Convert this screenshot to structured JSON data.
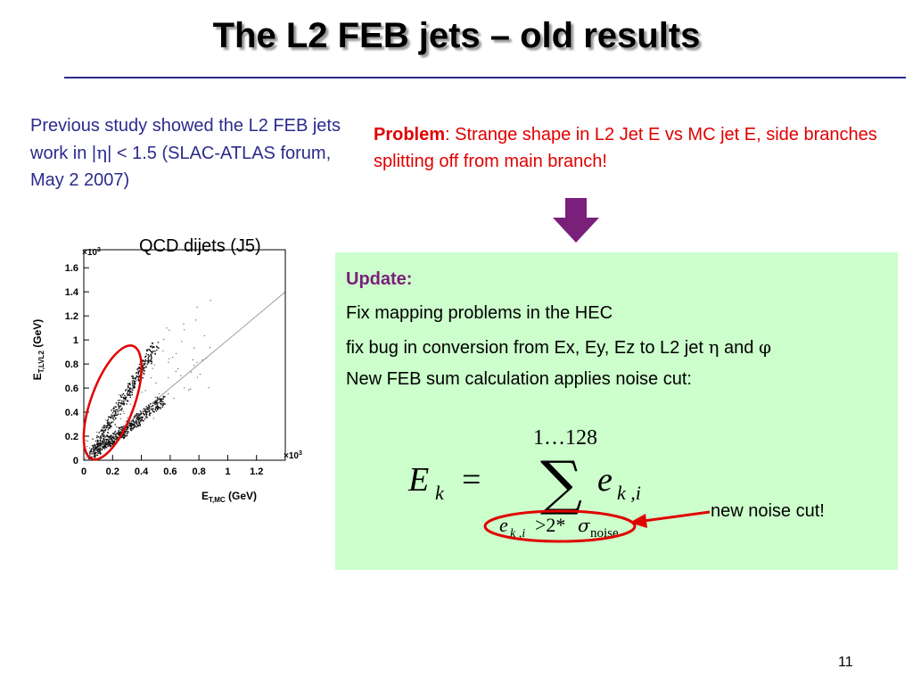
{
  "slide": {
    "title": "The L2 FEB jets – old results",
    "page_number": "11"
  },
  "left": {
    "text_before_eta": "Previous study showed the L2 FEB jets work in |",
    "eta": "η",
    "text_after_eta": "| < 1.5 (SLAC-ATLAS forum, May 2 2007)"
  },
  "problem": {
    "label": "Problem",
    "text": ": Strange shape in L2 Jet E vs MC jet E, side branches splitting off from main branch!"
  },
  "update": {
    "title": "Update:",
    "line1": "Fix mapping problems in the HEC",
    "line2_prefix": "fix bug in conversion from Ex, Ey, Ez to L2 jet ",
    "line2_eta": "η",
    "line2_and": " and ",
    "line2_phi": "φ",
    "line3": "New FEB sum calculation applies noise cut:",
    "noise_label": "new noise cut!"
  },
  "formula": {
    "lhs_E": "E",
    "lhs_sub": "k",
    "equals": "=",
    "sigma": "∑",
    "upper": "1…128",
    "rhs_e": "e",
    "rhs_sub": "k ,i",
    "lower_e": "e",
    "lower_sub": "k ,i",
    "lower_cond": ">2*",
    "lower_sigma": "σ",
    "lower_noise": "noise"
  },
  "colors": {
    "title_rule": "#2b2b8c",
    "left_text": "#2b2b8c",
    "problem_text": "#e00000",
    "arrow": "#7a1f7a",
    "update_bg": "#ccffcc",
    "update_title": "#7a1f7a",
    "highlight": "#e00000"
  },
  "chart_data": {
    "type": "scatter",
    "title": "QCD dijets (J5)",
    "xlabel": "E",
    "xlabel_sub": "T,MC",
    "xlabel_unit": " (GeV)",
    "ylabel": "E",
    "ylabel_sub": "T,LVL2",
    "ylabel_unit": " (GeV)",
    "x_multiplier": "×10",
    "y_multiplier": "×10",
    "multiplier_exp": "3",
    "xlim": [
      0,
      1.4
    ],
    "ylim": [
      0,
      1.75
    ],
    "xticks": [
      "0",
      "0.2",
      "0.4",
      "0.6",
      "0.8",
      "1",
      "1.2"
    ],
    "yticks": [
      "0",
      "0.2",
      "0.4",
      "0.6",
      "0.8",
      "1",
      "1.2",
      "1.4",
      "1.6"
    ],
    "reference_line": {
      "from": [
        0,
        0
      ],
      "to": [
        1.4,
        1.4
      ]
    },
    "branches": [
      {
        "name": "main",
        "x": [
          0.05,
          0.12,
          0.2,
          0.3,
          0.4,
          0.55
        ],
        "y": [
          0.05,
          0.12,
          0.18,
          0.26,
          0.36,
          0.5
        ]
      },
      {
        "name": "side",
        "x": [
          0.1,
          0.2,
          0.3,
          0.4,
          0.5
        ],
        "y": [
          0.15,
          0.35,
          0.55,
          0.75,
          0.95
        ]
      }
    ],
    "highlight_ellipse": {
      "center": [
        0.2,
        0.48
      ],
      "rx": 0.15,
      "ry": 0.5
    }
  }
}
